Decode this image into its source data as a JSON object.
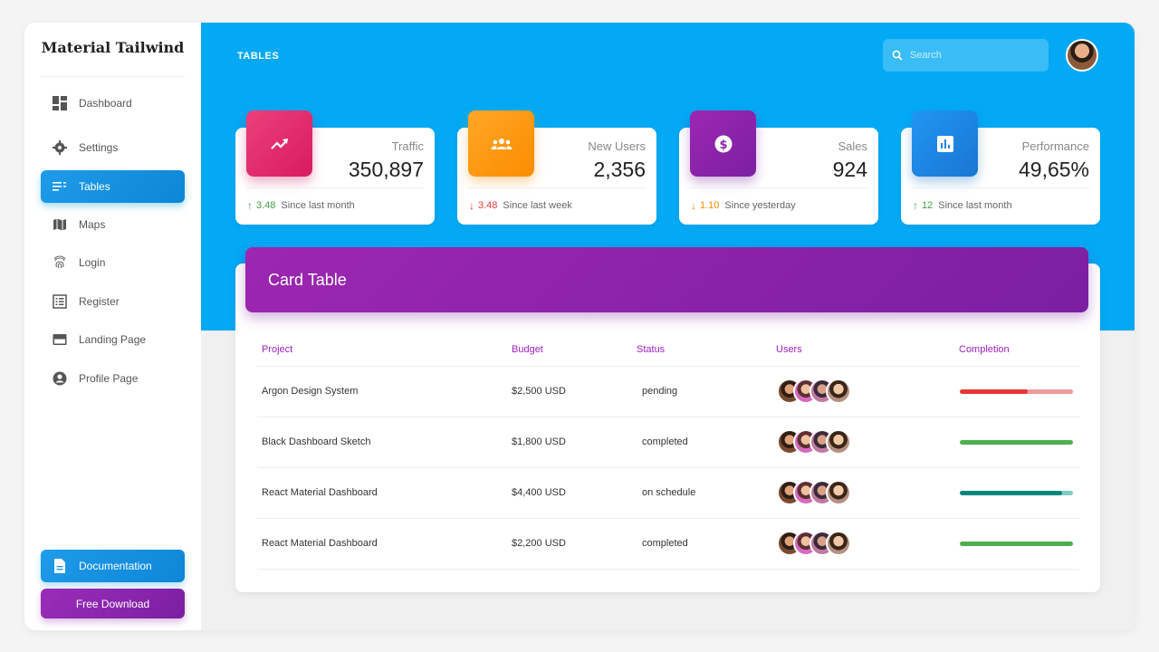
{
  "sidebar": {
    "brand": "Material Tailwind",
    "items": [
      {
        "label": "Dashboard",
        "icon": "dashboard-icon"
      },
      {
        "label": "Settings",
        "icon": "gear-icon"
      },
      {
        "label": "Tables",
        "icon": "list-icon",
        "active": true
      },
      {
        "label": "Maps",
        "icon": "map-icon"
      },
      {
        "label": "Login",
        "icon": "fingerprint-icon"
      },
      {
        "label": "Register",
        "icon": "form-icon"
      },
      {
        "label": "Landing Page",
        "icon": "web-icon"
      },
      {
        "label": "Profile Page",
        "icon": "account-icon"
      }
    ],
    "documentation_label": "Documentation",
    "free_download_label": "Free Download"
  },
  "header": {
    "page_label": "TABLES",
    "search_placeholder": "Search"
  },
  "stats": [
    {
      "title": "Traffic",
      "value": "350,897",
      "delta": "3.48",
      "direction": "up",
      "since": "Since last month",
      "color": "#e91e63",
      "delta_color": "#43a047",
      "icon": "trending-up-icon"
    },
    {
      "title": "New Users",
      "value": "2,356",
      "delta": "3.48",
      "direction": "down",
      "since": "Since last week",
      "color": "#fb8c00",
      "delta_color": "#e53935",
      "icon": "group-icon"
    },
    {
      "title": "Sales",
      "value": "924",
      "delta": "1.10",
      "direction": "down",
      "since": "Since yesterday",
      "color": "#8e24aa",
      "delta_color": "#fb8c00",
      "icon": "dollar-icon"
    },
    {
      "title": "Performance",
      "value": "49,65%",
      "delta": "12",
      "direction": "up",
      "since": "Since last month",
      "color": "#1e88e5",
      "delta_color": "#43a047",
      "icon": "chart-icon"
    }
  ],
  "table": {
    "title": "Card Table",
    "columns": [
      "Project",
      "Budget",
      "Status",
      "Users",
      "Completion"
    ],
    "rows": [
      {
        "project": "Argon Design System",
        "budget": "$2,500 USD",
        "status": "pending",
        "completion": 0.6,
        "bar_color": "#e53935",
        "track_color": "#ef9a9a"
      },
      {
        "project": "Black Dashboard Sketch",
        "budget": "$1,800 USD",
        "status": "completed",
        "completion": 1.0,
        "bar_color": "#4caf50",
        "track_color": "#a5d6a7"
      },
      {
        "project": "React Material Dashboard",
        "budget": "$4,400 USD",
        "status": "on schedule",
        "completion": 0.9,
        "bar_color": "#00897b",
        "track_color": "#80cbc4"
      },
      {
        "project": "React Material Dashboard",
        "budget": "$2,200 USD",
        "status": "completed",
        "completion": 1.0,
        "bar_color": "#4caf50",
        "track_color": "#a5d6a7"
      }
    ]
  }
}
